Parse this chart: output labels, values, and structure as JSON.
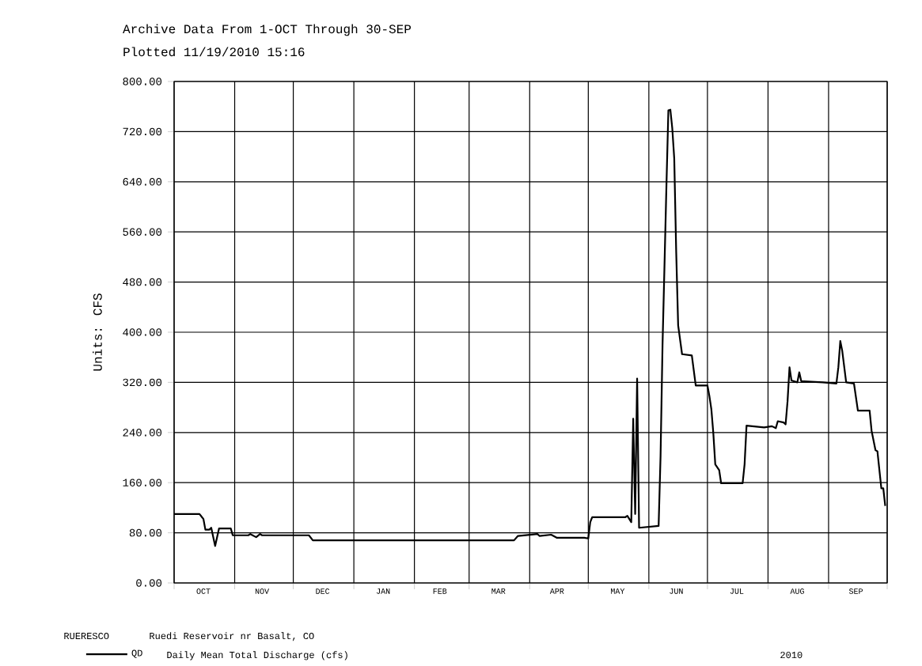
{
  "chart_data": {
    "type": "line",
    "title": "Archive Data From  1-OCT Through 30-SEP",
    "subtitle": "Plotted 11/19/2010  15:16",
    "ylabel": "Units: CFS",
    "annotations": [
      "RUERESCO",
      "Ruedi Reservoir nr Basalt, CO",
      "Daily Mean Total Discharge (cfs)",
      "2010"
    ],
    "x": [
      "2009-10-01",
      "2009-10-14",
      "2009-10-16",
      "2009-10-17",
      "2009-10-19",
      "2009-10-20",
      "2009-10-22",
      "2009-10-24",
      "2009-10-30",
      "2009-10-31",
      "2009-11-08",
      "2009-11-09",
      "2009-11-12",
      "2009-11-14",
      "2009-11-15",
      "2009-12-09",
      "2009-12-11",
      "2010-03-24",
      "2010-03-26",
      "2010-04-05",
      "2010-04-06",
      "2010-04-12",
      "2010-04-15",
      "2010-04-29",
      "2010-05-01",
      "2010-05-02",
      "2010-05-03",
      "2010-05-20",
      "2010-05-21",
      "2010-05-23",
      "2010-05-24",
      "2010-05-25",
      "2010-05-26",
      "2010-05-27",
      "2010-06-06",
      "2010-06-07",
      "2010-06-08",
      "2010-06-09",
      "2010-06-10",
      "2010-06-11",
      "2010-06-12",
      "2010-06-13",
      "2010-06-14",
      "2010-06-15",
      "2010-06-16",
      "2010-06-18",
      "2010-06-23",
      "2010-06-25",
      "2010-06-29",
      "2010-07-01",
      "2010-07-02",
      "2010-07-03",
      "2010-07-04",
      "2010-07-05",
      "2010-07-07",
      "2010-07-08",
      "2010-07-19",
      "2010-07-20",
      "2010-07-21",
      "2010-07-30",
      "2010-08-03",
      "2010-08-05",
      "2010-08-06",
      "2010-08-09",
      "2010-08-10",
      "2010-08-11",
      "2010-08-12",
      "2010-08-13",
      "2010-08-16",
      "2010-08-17",
      "2010-08-18",
      "2010-08-29",
      "2010-09-05",
      "2010-09-06",
      "2010-09-07",
      "2010-09-08",
      "2010-09-10",
      "2010-09-14",
      "2010-09-16",
      "2010-09-22",
      "2010-09-23",
      "2010-09-25",
      "2010-09-26",
      "2010-09-28",
      "2010-09-29",
      "2010-09-30"
    ],
    "series": [
      {
        "name": "QD",
        "color": "#000000",
        "values": [
          110,
          110,
          102,
          85,
          85,
          88,
          59,
          87,
          87,
          76,
          76,
          78,
          73,
          78,
          76,
          76,
          68,
          68,
          75,
          78,
          75,
          77,
          72,
          72,
          71,
          97,
          105,
          105,
          107,
          97,
          262,
          110,
          326,
          88,
          91,
          203,
          379,
          506,
          634,
          754,
          755,
          725,
          677,
          528,
          411,
          365,
          363,
          315,
          315,
          315,
          298,
          277,
          239,
          189,
          180,
          159,
          159,
          189,
          251,
          248,
          250,
          247,
          258,
          256,
          253,
          290,
          344,
          323,
          320,
          336,
          322,
          320,
          318,
          344,
          386,
          370,
          320,
          318,
          275,
          275,
          243,
          212,
          210,
          151,
          151,
          123
        ]
      }
    ],
    "xlim": [
      "2009-10-01",
      "2010-10-01"
    ],
    "xticks": [
      {
        "value": "2009-10-01",
        "label": null
      },
      {
        "value": "2009-11-01",
        "label": null
      },
      {
        "value": "2009-12-01",
        "label": null
      },
      {
        "value": "2010-01-01",
        "label": null
      },
      {
        "value": "2010-02-01",
        "label": null
      },
      {
        "value": "2010-03-01",
        "label": null
      },
      {
        "value": "2010-04-01",
        "label": null
      },
      {
        "value": "2010-05-01",
        "label": null
      },
      {
        "value": "2010-06-01",
        "label": null
      },
      {
        "value": "2010-07-01",
        "label": null
      },
      {
        "value": "2010-08-01",
        "label": null
      },
      {
        "value": "2010-09-01",
        "label": null
      },
      {
        "value": "2010-10-01",
        "label": null
      },
      {
        "value": "2009-10-16",
        "label": "OCT"
      },
      {
        "value": "2009-11-15",
        "label": "NOV"
      },
      {
        "value": "2009-12-16",
        "label": "DEC"
      },
      {
        "value": "2010-01-16",
        "label": "JAN"
      },
      {
        "value": "2010-02-14",
        "label": "FEB"
      },
      {
        "value": "2010-03-16",
        "label": "MAR"
      },
      {
        "value": "2010-04-15",
        "label": "APR"
      },
      {
        "value": "2010-05-16",
        "label": "MAY"
      },
      {
        "value": "2010-06-15",
        "label": "JUN"
      },
      {
        "value": "2010-07-16",
        "label": "JUL"
      },
      {
        "value": "2010-08-16",
        "label": "AUG"
      },
      {
        "value": "2010-09-15",
        "label": "SEP"
      }
    ],
    "ylim": [
      0,
      800
    ],
    "yticks": [
      {
        "value": 0,
        "label": "0.00"
      },
      {
        "value": 80,
        "label": "80.00"
      },
      {
        "value": 160,
        "label": "160.00"
      },
      {
        "value": 240,
        "label": "240.00"
      },
      {
        "value": 320,
        "label": "320.00"
      },
      {
        "value": 400,
        "label": "400.00"
      },
      {
        "value": 480,
        "label": "480.00"
      },
      {
        "value": 560,
        "label": "560.00"
      },
      {
        "value": 640,
        "label": "640.00"
      },
      {
        "value": 720,
        "label": "720.00"
      },
      {
        "value": 800,
        "label": "800.00"
      }
    ],
    "grid": true,
    "legend": "bottom left",
    "marker": "none",
    "line_style": "solid"
  }
}
